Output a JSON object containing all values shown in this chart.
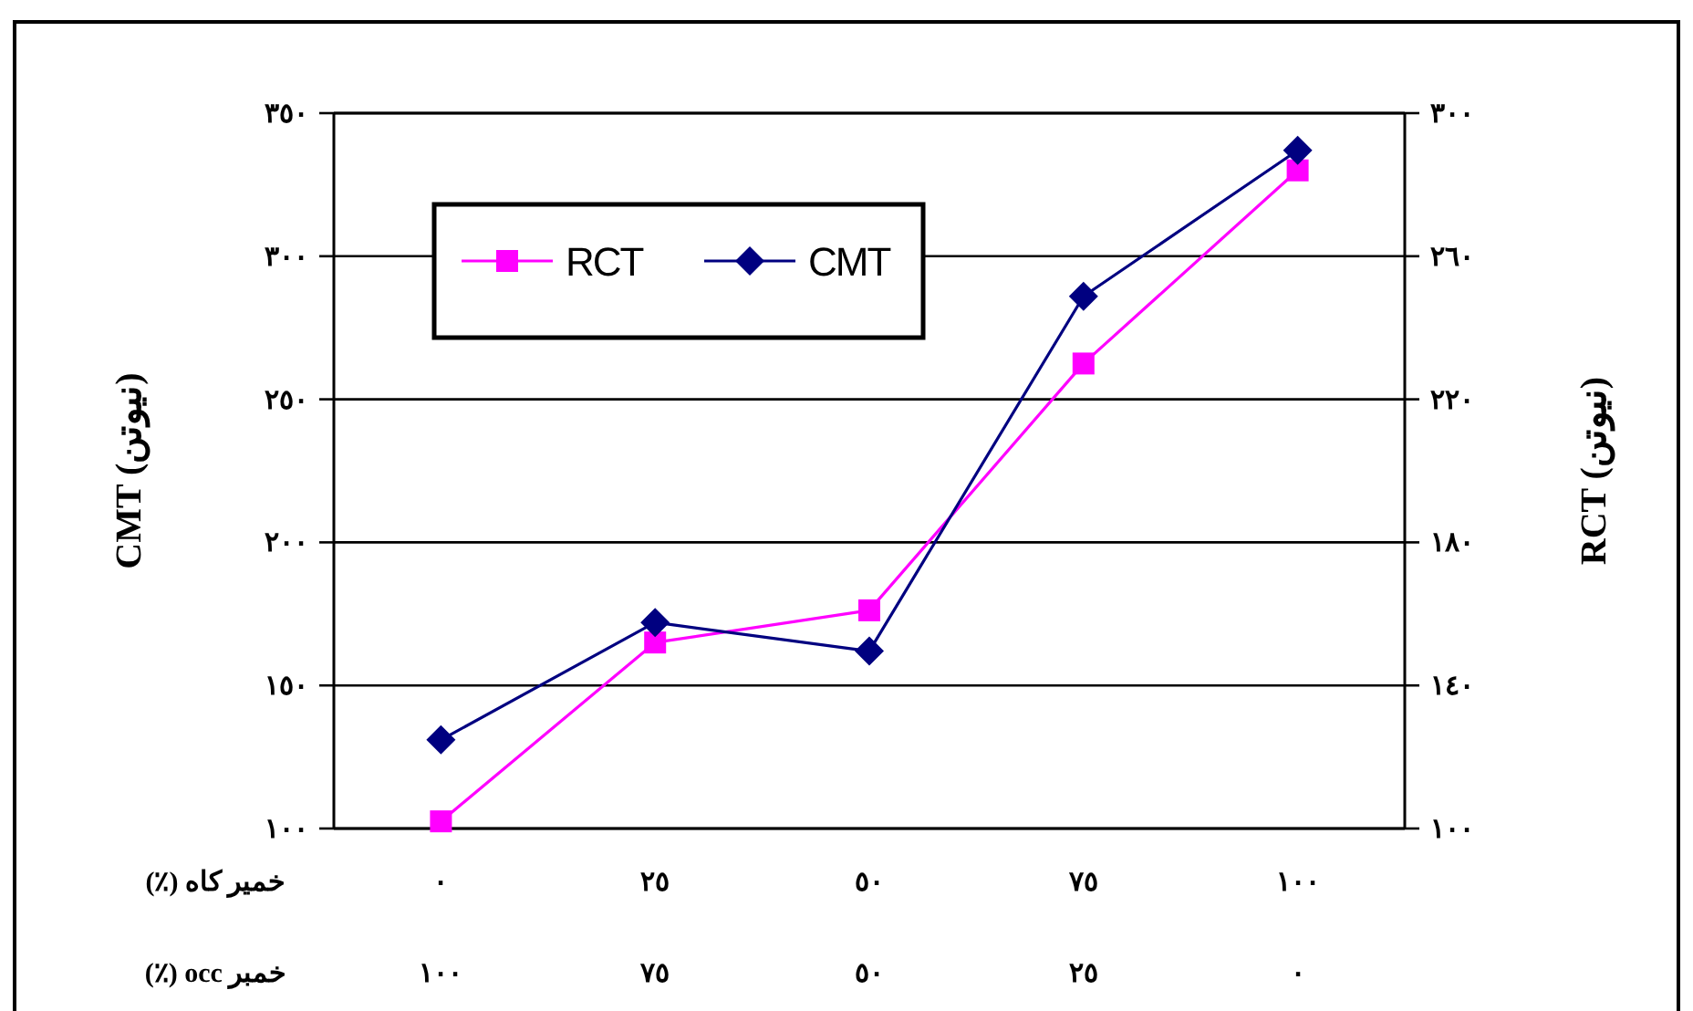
{
  "chart_data": {
    "type": "line",
    "categories": [
      "٠",
      "٢٥",
      "٥٠",
      "٧٥",
      "١٠٠"
    ],
    "xlabel": "خمیر کاه (٪)",
    "ylabel": "CMT (نیوتن)",
    "y2label": "RCT (نیوتن)",
    "annotations": [
      "خمبر occ (٪)",
      "١٠٠",
      "٧٥",
      "٥٠",
      "٢٥",
      "٠"
    ],
    "series": [
      {
        "name": "RCT",
        "color": "#ff00ff",
        "marker": "square",
        "axis": "y2",
        "values": [
          102,
          152,
          161,
          230,
          284
        ]
      },
      {
        "name": "CMT",
        "color": "#000080",
        "marker": "diamond",
        "values": [
          131,
          172,
          162,
          286,
          337
        ]
      }
    ],
    "ylim": [
      100,
      350
    ],
    "yticks": [
      {
        "value": 100,
        "label": "١٠٠"
      },
      {
        "value": 150,
        "label": "١٥٠"
      },
      {
        "value": 200,
        "label": "٢٠٠"
      },
      {
        "value": 250,
        "label": "٢٥٠"
      },
      {
        "value": 300,
        "label": "٣٠٠"
      },
      {
        "value": 350,
        "label": "٣٥٠"
      }
    ],
    "y2lim": [
      100,
      300
    ],
    "y2ticks": [
      {
        "value": 100,
        "label": "١٠٠"
      },
      {
        "value": 140,
        "label": "١٤٠"
      },
      {
        "value": 180,
        "label": "١٨٠"
      },
      {
        "value": 220,
        "label": "٢٢٠"
      },
      {
        "value": 260,
        "label": "٢٦٠"
      },
      {
        "value": 300,
        "label": "٣٠٠"
      }
    ],
    "grid": "y",
    "legend": "top left",
    "line_style": "solid"
  }
}
